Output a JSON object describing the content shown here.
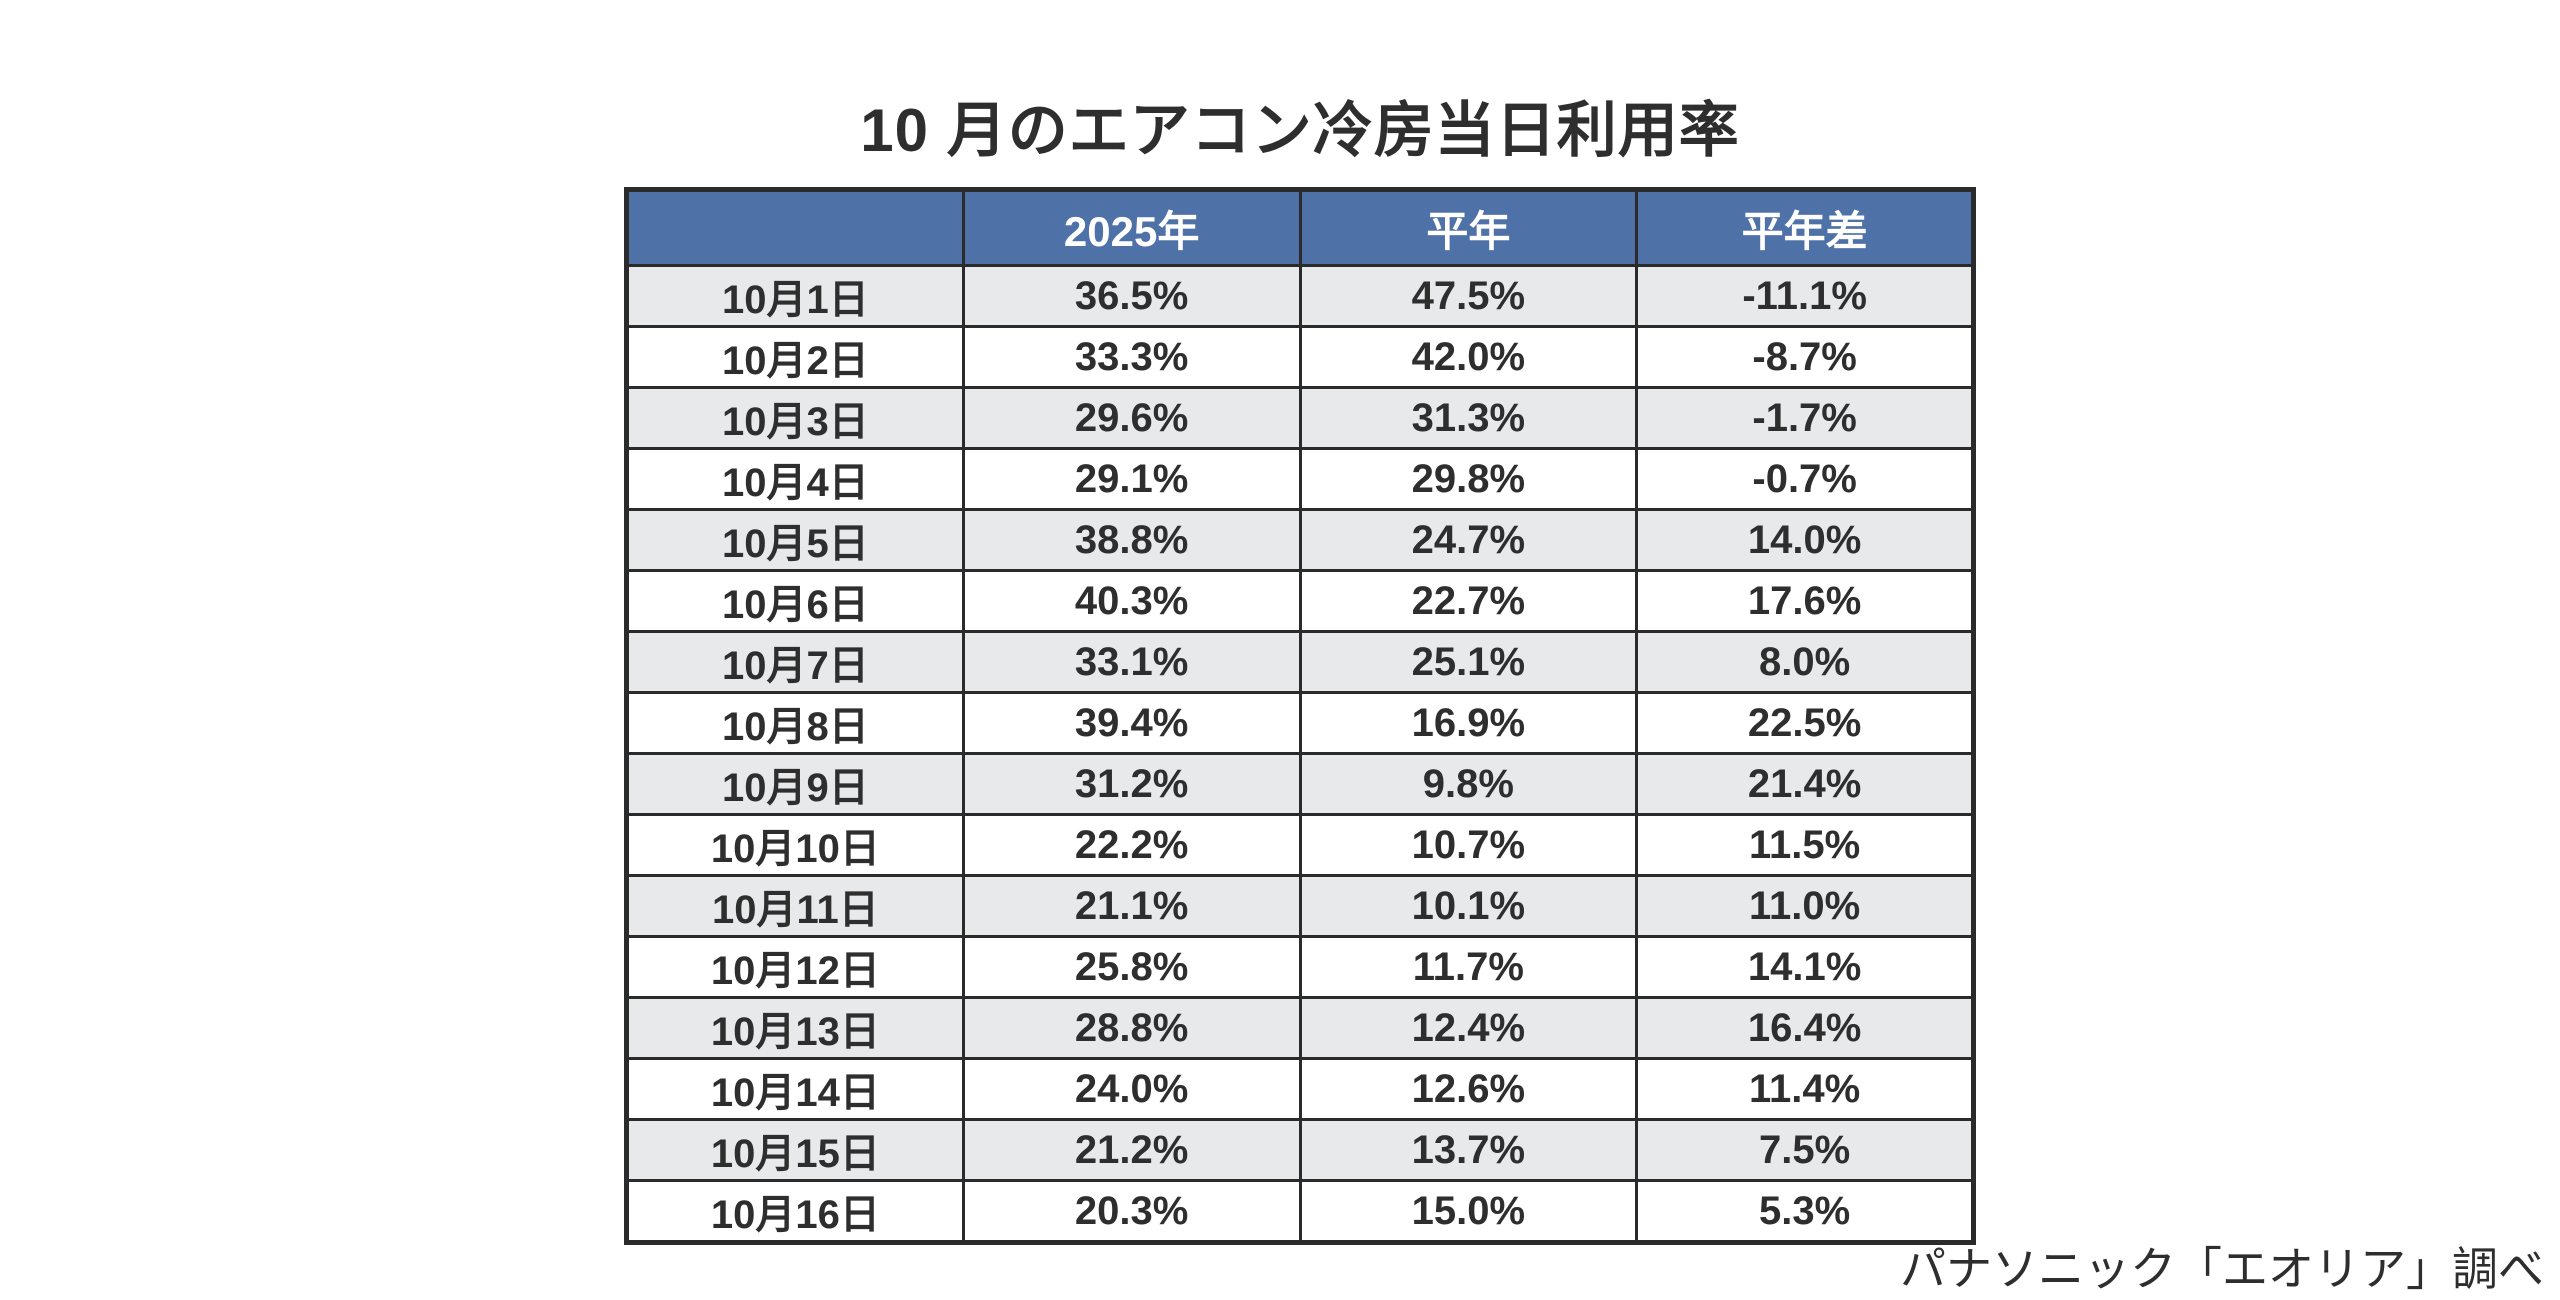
{
  "page": {
    "title": "10 月のエアコン冷房当日利用率",
    "source_note": "パナソニック「エオリア」調べ"
  },
  "colors": {
    "page_bg": "#FFFFFF",
    "header_bg": "#4E71A8",
    "header_text": "#FFFFFF",
    "row_bg": "#FFFFFF",
    "row_alt_bg": "#E8E9EB",
    "border": "#2B2B2B",
    "text": "#2E2E2E"
  },
  "chart_data": {
    "type": "table",
    "title": "10 月のエアコン冷房当日利用率",
    "columns": [
      "",
      "2025年",
      "平年",
      "平年差"
    ],
    "rows": [
      [
        "10月1日",
        "36.5%",
        "47.5%",
        "-11.1%"
      ],
      [
        "10月2日",
        "33.3%",
        "42.0%",
        "-8.7%"
      ],
      [
        "10月3日",
        "29.6%",
        "31.3%",
        "-1.7%"
      ],
      [
        "10月4日",
        "29.1%",
        "29.8%",
        "-0.7%"
      ],
      [
        "10月5日",
        "38.8%",
        "24.7%",
        "14.0%"
      ],
      [
        "10月6日",
        "40.3%",
        "22.7%",
        "17.6%"
      ],
      [
        "10月7日",
        "33.1%",
        "25.1%",
        "8.0%"
      ],
      [
        "10月8日",
        "39.4%",
        "16.9%",
        "22.5%"
      ],
      [
        "10月9日",
        "31.2%",
        "9.8%",
        "21.4%"
      ],
      [
        "10月10日",
        "22.2%",
        "10.7%",
        "11.5%"
      ],
      [
        "10月11日",
        "21.1%",
        "10.1%",
        "11.0%"
      ],
      [
        "10月12日",
        "25.8%",
        "11.7%",
        "14.1%"
      ],
      [
        "10月13日",
        "28.8%",
        "12.4%",
        "16.4%"
      ],
      [
        "10月14日",
        "24.0%",
        "12.6%",
        "11.4%"
      ],
      [
        "10月15日",
        "21.2%",
        "13.7%",
        "7.5%"
      ],
      [
        "10月16日",
        "20.3%",
        "15.0%",
        "5.3%"
      ]
    ],
    "row_striping": "odd rows gray, even rows white",
    "source": "パナソニック「エオリア」調べ"
  }
}
